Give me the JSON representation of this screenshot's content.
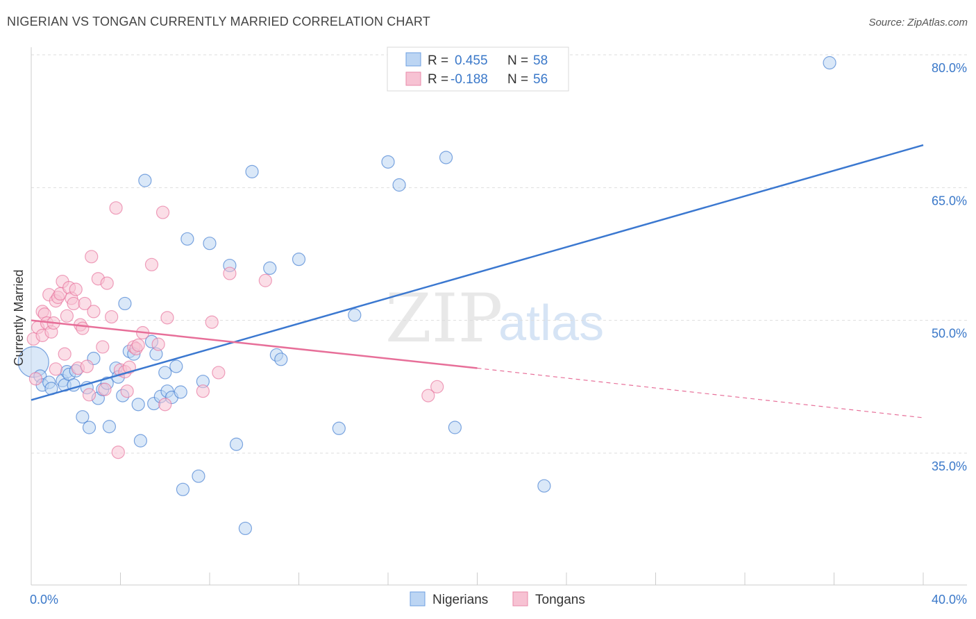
{
  "title": "NIGERIAN VS TONGAN CURRENTLY MARRIED CORRELATION CHART",
  "source": "Source: ZipAtlas.com",
  "watermark": {
    "zip": "ZIP",
    "atlas": "atlas"
  },
  "colors": {
    "blue": "#3b78d0",
    "blue_fill": "#bcd5f3",
    "pink": "#e76f99",
    "pink_fill": "#f7c2d3",
    "tick_label": "#3a78c9",
    "grid": "#dddddd"
  },
  "legend": {
    "rows": [
      {
        "r_label": "R =",
        "r_value": "0.455",
        "n_label": "N =",
        "n_value": "58"
      },
      {
        "r_label": "R =",
        "r_value": "-0.188",
        "n_label": "N =",
        "n_value": "56"
      }
    ]
  },
  "bottom_legend": [
    "Nigerians",
    "Tongans"
  ],
  "chart_data": {
    "type": "scatter",
    "title": "NIGERIAN VS TONGAN CURRENTLY MARRIED CORRELATION CHART",
    "xlabel": "",
    "ylabel": "Currently Married",
    "xlim": [
      0,
      40
    ],
    "ylim": [
      20,
      83
    ],
    "x_tick_labels": [
      "0.0%",
      "40.0%"
    ],
    "y_ticks": [
      35,
      50,
      65,
      80
    ],
    "y_tick_labels": [
      "35.0%",
      "50.0%",
      "65.0%",
      "80.0%"
    ],
    "grid": true,
    "legend_position": "top-center",
    "series": [
      {
        "name": "Nigerians",
        "R": 0.455,
        "N": 58,
        "trend": {
          "x0": 0,
          "y0": 41.0,
          "x1": 40,
          "y1": 69.8
        },
        "points": [
          [
            0.1,
            45.3
          ],
          [
            0.4,
            43.7
          ],
          [
            0.5,
            42.7
          ],
          [
            0.8,
            43.0
          ],
          [
            0.9,
            42.3
          ],
          [
            1.4,
            43.2
          ],
          [
            1.5,
            42.7
          ],
          [
            1.6,
            44.2
          ],
          [
            1.7,
            43.9
          ],
          [
            1.9,
            42.7
          ],
          [
            2.0,
            44.3
          ],
          [
            2.3,
            39.1
          ],
          [
            2.5,
            42.4
          ],
          [
            2.6,
            37.9
          ],
          [
            2.8,
            45.7
          ],
          [
            3.0,
            41.2
          ],
          [
            3.2,
            42.2
          ],
          [
            3.4,
            42.9
          ],
          [
            3.5,
            38.0
          ],
          [
            3.8,
            44.6
          ],
          [
            3.9,
            43.6
          ],
          [
            4.1,
            41.5
          ],
          [
            4.2,
            51.9
          ],
          [
            4.4,
            46.5
          ],
          [
            4.6,
            46.2
          ],
          [
            4.8,
            40.5
          ],
          [
            4.9,
            36.4
          ],
          [
            5.1,
            65.8
          ],
          [
            5.4,
            47.6
          ],
          [
            5.5,
            40.6
          ],
          [
            5.6,
            46.2
          ],
          [
            5.8,
            41.4
          ],
          [
            6.0,
            44.1
          ],
          [
            6.1,
            42.0
          ],
          [
            6.3,
            41.3
          ],
          [
            6.5,
            44.8
          ],
          [
            6.8,
            30.9
          ],
          [
            7.0,
            59.2
          ],
          [
            7.5,
            32.4
          ],
          [
            7.7,
            43.1
          ],
          [
            8.0,
            58.7
          ],
          [
            8.9,
            56.2
          ],
          [
            9.2,
            36.0
          ],
          [
            9.6,
            26.5
          ],
          [
            9.9,
            66.8
          ],
          [
            10.7,
            55.9
          ],
          [
            11.0,
            46.1
          ],
          [
            11.2,
            45.6
          ],
          [
            12.0,
            56.9
          ],
          [
            14.5,
            50.6
          ],
          [
            13.8,
            37.8
          ],
          [
            16.0,
            67.9
          ],
          [
            16.5,
            65.3
          ],
          [
            18.6,
            68.4
          ],
          [
            19.0,
            37.9
          ],
          [
            23.0,
            31.3
          ],
          [
            35.8,
            79.1
          ],
          [
            6.7,
            41.9
          ]
        ]
      },
      {
        "name": "Tongans",
        "R": -0.188,
        "N": 56,
        "trend": {
          "x0": 0,
          "y0": 50.0,
          "x1": 20,
          "y1": 44.6,
          "dash_x1": 40,
          "dash_y1": 39.0
        },
        "points": [
          [
            0.1,
            47.9
          ],
          [
            0.2,
            43.4
          ],
          [
            0.3,
            49.2
          ],
          [
            0.5,
            48.3
          ],
          [
            0.5,
            51.0
          ],
          [
            0.6,
            50.7
          ],
          [
            0.7,
            49.7
          ],
          [
            0.8,
            52.9
          ],
          [
            0.9,
            48.7
          ],
          [
            1.0,
            49.7
          ],
          [
            1.1,
            52.2
          ],
          [
            1.1,
            44.5
          ],
          [
            1.2,
            52.6
          ],
          [
            1.3,
            53.0
          ],
          [
            1.4,
            54.4
          ],
          [
            1.5,
            46.2
          ],
          [
            1.6,
            50.5
          ],
          [
            1.7,
            53.7
          ],
          [
            1.8,
            52.5
          ],
          [
            1.9,
            51.9
          ],
          [
            2.0,
            53.5
          ],
          [
            2.1,
            44.6
          ],
          [
            2.2,
            49.5
          ],
          [
            2.3,
            49.1
          ],
          [
            2.4,
            51.9
          ],
          [
            2.5,
            44.8
          ],
          [
            2.6,
            41.6
          ],
          [
            2.7,
            57.2
          ],
          [
            2.8,
            51.0
          ],
          [
            3.0,
            54.7
          ],
          [
            3.2,
            47.0
          ],
          [
            3.3,
            42.2
          ],
          [
            3.4,
            54.2
          ],
          [
            3.6,
            50.4
          ],
          [
            3.8,
            62.7
          ],
          [
            3.9,
            35.1
          ],
          [
            4.0,
            44.4
          ],
          [
            4.2,
            44.2
          ],
          [
            4.3,
            42.0
          ],
          [
            4.4,
            44.7
          ],
          [
            4.6,
            47.0
          ],
          [
            4.7,
            46.8
          ],
          [
            4.8,
            47.2
          ],
          [
            5.0,
            48.6
          ],
          [
            5.4,
            56.3
          ],
          [
            5.7,
            47.3
          ],
          [
            5.9,
            62.2
          ],
          [
            6.0,
            40.5
          ],
          [
            6.1,
            50.3
          ],
          [
            7.7,
            42.0
          ],
          [
            8.1,
            49.8
          ],
          [
            8.4,
            44.1
          ],
          [
            8.9,
            55.3
          ],
          [
            10.5,
            54.5
          ],
          [
            17.8,
            41.5
          ],
          [
            18.2,
            42.5
          ]
        ]
      }
    ]
  }
}
